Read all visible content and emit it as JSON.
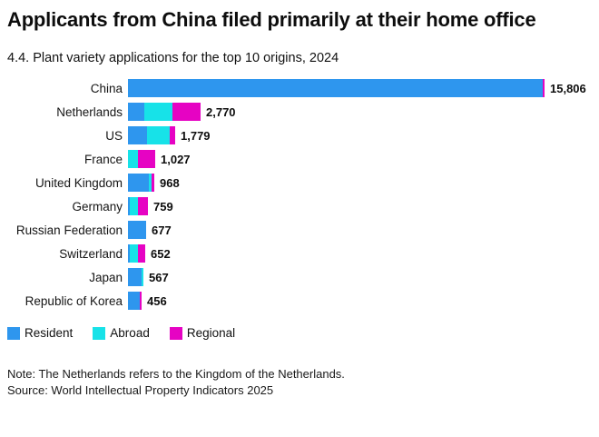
{
  "title": "Applicants from China filed primarily at their home office",
  "subtitle": "4.4. Plant variety applications for the top 10 origins, 2024",
  "note": "Note: The Netherlands refers to the Kingdom of the Netherlands.",
  "source": "Source: World Intellectual Property Indicators 2025",
  "colors": {
    "resident": "#2E96EE",
    "abroad": "#17E2E8",
    "regional": "#E603C3"
  },
  "legend": [
    {
      "label": "Resident",
      "color_key": "resident"
    },
    {
      "label": "Abroad",
      "color_key": "abroad"
    },
    {
      "label": "Regional",
      "color_key": "regional"
    }
  ],
  "chart_data": {
    "type": "bar",
    "orientation": "horizontal",
    "stacked": true,
    "grid": false,
    "legend_position": "bottom-left",
    "categories": [
      "China",
      "Netherlands",
      "US",
      "France",
      "United Kingdom",
      "Germany",
      "Russian Federation",
      "Switzerland",
      "Japan",
      "Republic of Korea"
    ],
    "totals": [
      15806,
      2770,
      1779,
      1027,
      968,
      759,
      677,
      652,
      567,
      456
    ],
    "total_labels": [
      "15,806",
      "2,770",
      "1,779",
      "1,027",
      "968",
      "759",
      "677",
      "652",
      "567",
      "456"
    ],
    "series": [
      {
        "name": "Resident",
        "color_key": "resident",
        "values": [
          15737,
          630,
          715,
          0,
          780,
          60,
          677,
          75,
          500,
          445
        ]
      },
      {
        "name": "Abroad",
        "color_key": "abroad",
        "values": [
          0,
          1080,
          872,
          370,
          100,
          310,
          0,
          315,
          67,
          0
        ]
      },
      {
        "name": "Regional",
        "color_key": "regional",
        "values": [
          69,
          1060,
          192,
          657,
          88,
          389,
          0,
          262,
          0,
          11
        ]
      }
    ],
    "xlim": [
      0,
      15806
    ]
  }
}
